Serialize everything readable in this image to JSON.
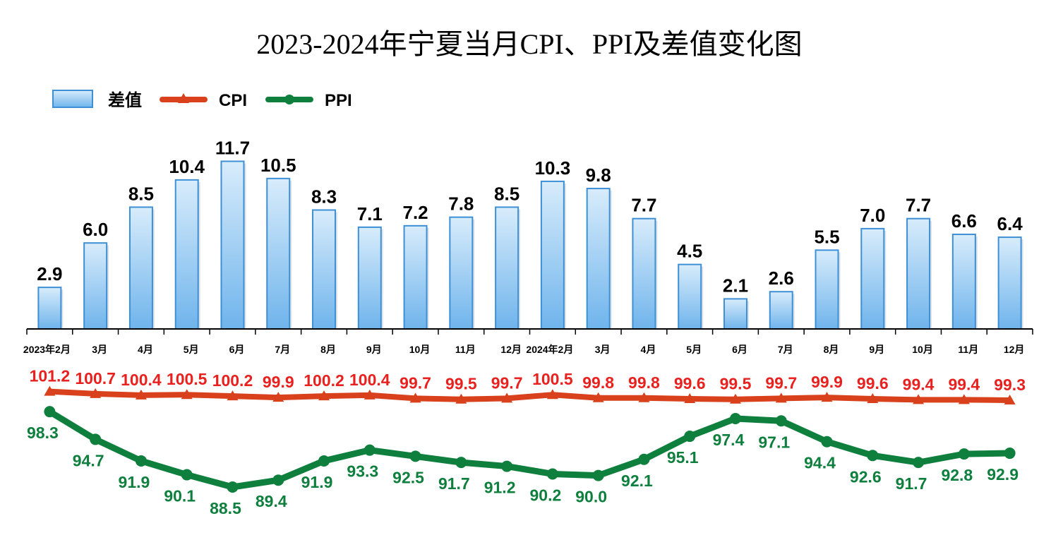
{
  "chart_data": {
    "type": "bar",
    "title": "2023-2024年宁夏当月CPI、PPI及差值变化图",
    "categories": [
      "2023年2月",
      "3月",
      "4月",
      "5月",
      "6月",
      "7月",
      "8月",
      "9月",
      "10月",
      "11月",
      "12月",
      "2024年2月",
      "3月",
      "4月",
      "5月",
      "6月",
      "7月",
      "8月",
      "9月",
      "10月",
      "11月",
      "12月"
    ],
    "series": [
      {
        "name": "差值",
        "type": "bar",
        "values": [
          2.9,
          6.0,
          8.5,
          10.4,
          11.7,
          10.5,
          8.3,
          7.1,
          7.2,
          7.8,
          8.5,
          10.3,
          9.8,
          7.7,
          4.5,
          2.1,
          2.6,
          5.5,
          7.0,
          7.7,
          6.6,
          6.4
        ]
      },
      {
        "name": "CPI",
        "type": "line",
        "values": [
          101.2,
          100.7,
          100.4,
          100.5,
          100.2,
          99.9,
          100.2,
          100.4,
          99.7,
          99.5,
          99.7,
          100.5,
          99.8,
          99.8,
          99.6,
          99.5,
          99.7,
          99.9,
          99.6,
          99.4,
          99.4,
          99.3
        ]
      },
      {
        "name": "PPI",
        "type": "line",
        "values": [
          98.3,
          94.7,
          91.9,
          90.1,
          88.5,
          89.4,
          91.9,
          93.3,
          92.5,
          91.7,
          91.2,
          90.2,
          90.0,
          92.1,
          95.1,
          97.4,
          97.1,
          94.4,
          92.6,
          91.7,
          92.8,
          92.9
        ]
      }
    ],
    "bar_labels": [
      "2.9",
      "6.0",
      "8.5",
      "10.4",
      "11.7",
      "10.5",
      "8.3",
      "7.1",
      "7.2",
      "7.8",
      "8.5",
      "10.3",
      "9.8",
      "7.7",
      "4.5",
      "2.1",
      "2.6",
      "5.5",
      "7.0",
      "7.7",
      "6.6",
      "6.4"
    ],
    "cpi_labels": [
      "101.2",
      "100.7",
      "100.4",
      "100.5",
      "100.2",
      "99.9",
      "100.2",
      "100.4",
      "99.7",
      "99.5",
      "99.7",
      "100.5",
      "99.8",
      "99.8",
      "99.6",
      "99.5",
      "99.7",
      "99.9",
      "99.6",
      "99.4",
      "99.4",
      "99.3"
    ],
    "ppi_labels": [
      "98.3",
      "94.7",
      "91.9",
      "90.1",
      "88.5",
      "89.4",
      "91.9",
      "93.3",
      "92.5",
      "91.7",
      "91.2",
      "90.2",
      "90.0",
      "92.1",
      "95.1",
      "97.4",
      "97.1",
      "94.4",
      "92.6",
      "91.7",
      "92.8",
      "92.9"
    ],
    "legend": [
      "差值",
      "CPI",
      "PPI"
    ],
    "legend_position": "top-left",
    "bar_ylim": [
      0,
      12
    ],
    "colors": {
      "bar_fill_top": "#d8ecfb",
      "bar_fill_bottom": "#6fb4ec",
      "bar_stroke": "#3d8fd6",
      "cpi_line": "#d9401c",
      "cpi_label": "#e8211f",
      "ppi_line": "#0f7f3e",
      "ppi_label": "#0f7f3e",
      "axis": "#000000"
    }
  }
}
